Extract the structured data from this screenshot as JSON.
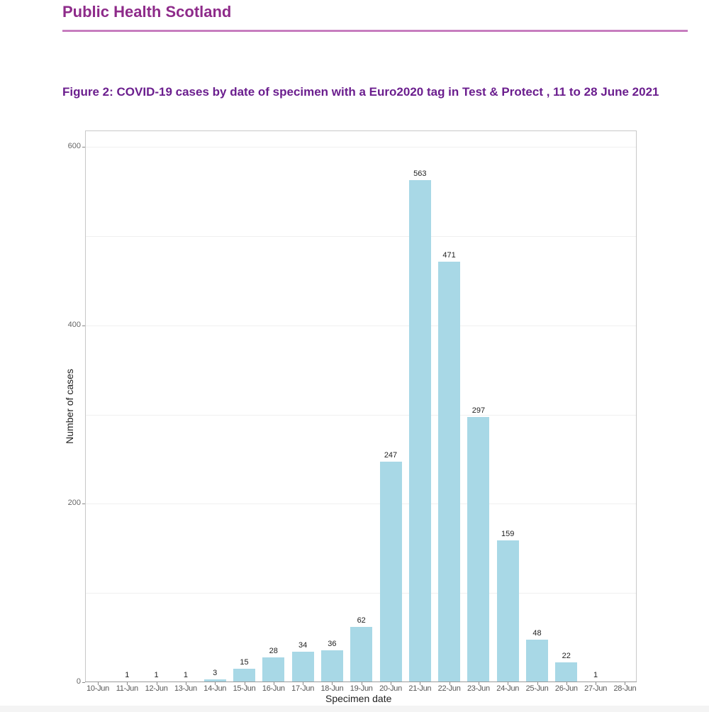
{
  "header": {
    "organisation": "Public Health Scotland",
    "figure_title": "Figure 2: COVID-19 cases by date of specimen with a Euro2020 tag in Test & Protect , 11 to 28 June 2021"
  },
  "colors": {
    "brand": "#8e2b8a",
    "title": "#6b1e8e",
    "bar": "#a8d8e6"
  },
  "chart_data": {
    "type": "bar",
    "title": "Figure 2: COVID-19 cases by date of specimen with a Euro2020 tag in Test & Protect , 11 to 28 June 2021",
    "xlabel": "Specimen date",
    "ylabel": "Number of cases",
    "ylim": [
      0,
      620
    ],
    "yticks": [
      0,
      200,
      400,
      600
    ],
    "grid": true,
    "categories": [
      "10-Jun",
      "11-Jun",
      "12-Jun",
      "13-Jun",
      "14-Jun",
      "15-Jun",
      "16-Jun",
      "17-Jun",
      "18-Jun",
      "19-Jun",
      "20-Jun",
      "21-Jun",
      "22-Jun",
      "23-Jun",
      "24-Jun",
      "25-Jun",
      "26-Jun",
      "27-Jun",
      "28-Jun"
    ],
    "values": [
      null,
      1,
      1,
      1,
      3,
      15,
      28,
      34,
      36,
      62,
      247,
      563,
      471,
      297,
      159,
      48,
      22,
      1,
      null
    ],
    "value_labels": [
      "",
      "1",
      "1",
      "1",
      "3",
      "15",
      "28",
      "34",
      "36",
      "62",
      "247",
      "563",
      "471",
      "297",
      "159",
      "48",
      "22",
      "1",
      ""
    ]
  }
}
